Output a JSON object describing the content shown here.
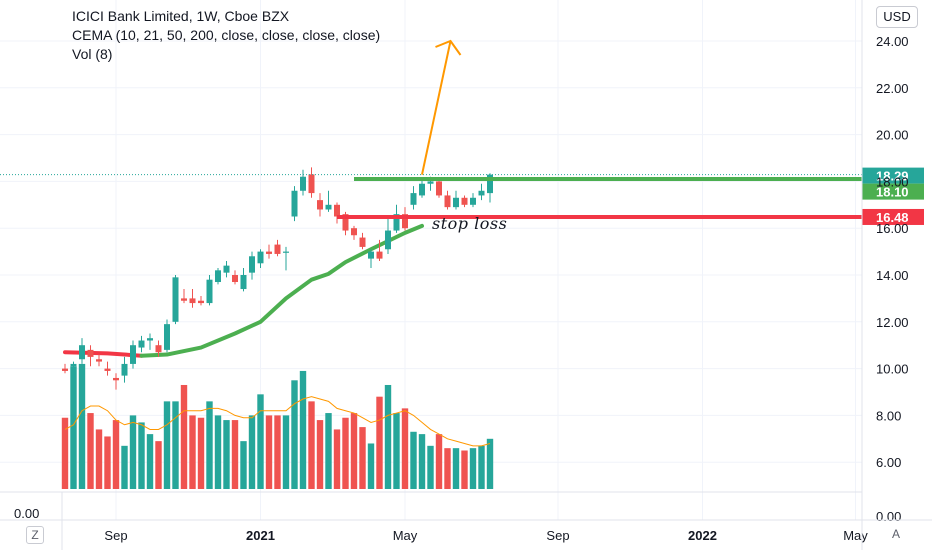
{
  "header": {
    "title": "ICICI Bank Limited, 1W, Cboe BZX",
    "indicator": "CEMA (10, 21, 50, 200, close, close, close, close)",
    "volume": "Vol (8)"
  },
  "currency_button": "USD",
  "left_scale_zero": "0.00",
  "corner_left": "Z",
  "corner_right": "A",
  "colors": {
    "up": "#26a69a",
    "down": "#ef5350",
    "ema": "#4caf50",
    "stop": "#f23645",
    "arrow": "#ff9800",
    "target": "#4caf50",
    "vol_ma": "#ff9800",
    "last_price": "#26a69a",
    "grid": "#f0f3fa"
  },
  "annotation": {
    "stop_label": "stop loss"
  },
  "chart_data": {
    "type": "candlestick",
    "title": "ICICI Bank Limited, 1W, Cboe BZX",
    "y_price_range": [
      5.0,
      25.2
    ],
    "y_ticks": [
      "24.00",
      "22.00",
      "20.00",
      "18.00",
      "16.00",
      "14.00",
      "12.00",
      "10.00",
      "8.00",
      "6.00",
      "0.00"
    ],
    "x_ticks": [
      "Sep",
      "2021",
      "May",
      "Sep",
      "2022",
      "May"
    ],
    "x_tick_weeks": [
      6,
      23,
      40,
      58,
      75,
      93
    ],
    "price_labels": [
      {
        "text": "18.29",
        "value": 18.29,
        "color": "#26a69a"
      },
      {
        "text": "18.10",
        "value": 18.1,
        "color": "#4caf50"
      },
      {
        "text": "16.48",
        "value": 16.48,
        "color": "#f23645"
      }
    ],
    "target_line": {
      "value": 18.1,
      "start_week": 34
    },
    "stop_line": {
      "value": 16.48,
      "start_week": 32
    },
    "arrow": {
      "from": {
        "week": 42,
        "value": 18.29
      },
      "to": {
        "week": 45,
        "value": 24.0
      }
    },
    "ema_line": [
      {
        "week": 0,
        "value": 10.7
      },
      {
        "week": 5,
        "value": 10.65
      },
      {
        "week": 9,
        "value": 10.55
      },
      {
        "week": 12,
        "value": 10.6
      },
      {
        "week": 16,
        "value": 10.9
      },
      {
        "week": 20,
        "value": 11.5
      },
      {
        "week": 23,
        "value": 12.0
      },
      {
        "week": 26,
        "value": 13.0
      },
      {
        "week": 29,
        "value": 13.8
      },
      {
        "week": 31,
        "value": 14.05
      },
      {
        "week": 33,
        "value": 14.55
      },
      {
        "week": 36,
        "value": 15.1
      },
      {
        "week": 40,
        "value": 15.8
      },
      {
        "week": 42,
        "value": 16.1
      }
    ],
    "candles": [
      {
        "o": 10.0,
        "h": 10.2,
        "l": 9.8,
        "c": 9.9
      },
      {
        "o": 10.1,
        "h": 10.3,
        "l": 9.6,
        "c": 10.2
      },
      {
        "o": 10.4,
        "h": 11.3,
        "l": 10.2,
        "c": 11.0
      },
      {
        "o": 10.8,
        "h": 11.0,
        "l": 10.1,
        "c": 10.5
      },
      {
        "o": 10.4,
        "h": 10.6,
        "l": 10.1,
        "c": 10.3
      },
      {
        "o": 10.0,
        "h": 10.3,
        "l": 9.7,
        "c": 9.9
      },
      {
        "o": 9.6,
        "h": 9.8,
        "l": 9.1,
        "c": 9.5
      },
      {
        "o": 9.7,
        "h": 10.5,
        "l": 9.4,
        "c": 10.2
      },
      {
        "o": 10.2,
        "h": 11.2,
        "l": 10.0,
        "c": 11.0
      },
      {
        "o": 10.9,
        "h": 11.4,
        "l": 10.7,
        "c": 11.2
      },
      {
        "o": 11.2,
        "h": 11.5,
        "l": 10.8,
        "c": 11.3
      },
      {
        "o": 11.0,
        "h": 11.2,
        "l": 10.5,
        "c": 10.7
      },
      {
        "o": 10.8,
        "h": 12.1,
        "l": 10.7,
        "c": 11.9
      },
      {
        "o": 12.0,
        "h": 14.0,
        "l": 11.9,
        "c": 13.9
      },
      {
        "o": 13.0,
        "h": 13.4,
        "l": 12.8,
        "c": 12.9
      },
      {
        "o": 13.0,
        "h": 13.4,
        "l": 12.6,
        "c": 12.8
      },
      {
        "o": 12.9,
        "h": 13.1,
        "l": 12.7,
        "c": 12.8
      },
      {
        "o": 12.8,
        "h": 14.0,
        "l": 12.7,
        "c": 13.8
      },
      {
        "o": 13.7,
        "h": 14.3,
        "l": 13.6,
        "c": 14.2
      },
      {
        "o": 14.1,
        "h": 14.6,
        "l": 13.9,
        "c": 14.4
      },
      {
        "o": 14.0,
        "h": 14.2,
        "l": 13.6,
        "c": 13.7
      },
      {
        "o": 13.4,
        "h": 14.3,
        "l": 13.3,
        "c": 14.0
      },
      {
        "o": 14.1,
        "h": 15.0,
        "l": 13.8,
        "c": 14.8
      },
      {
        "o": 14.5,
        "h": 15.1,
        "l": 14.3,
        "c": 15.0
      },
      {
        "o": 15.0,
        "h": 15.3,
        "l": 14.7,
        "c": 14.9
      },
      {
        "o": 15.3,
        "h": 15.5,
        "l": 14.8,
        "c": 14.9
      },
      {
        "o": 15.0,
        "h": 15.2,
        "l": 14.2,
        "c": 15.0
      },
      {
        "o": 16.5,
        "h": 17.8,
        "l": 16.3,
        "c": 17.6
      },
      {
        "o": 17.6,
        "h": 18.5,
        "l": 17.4,
        "c": 18.2
      },
      {
        "o": 18.3,
        "h": 18.6,
        "l": 17.3,
        "c": 17.5
      },
      {
        "o": 17.2,
        "h": 17.5,
        "l": 16.5,
        "c": 16.8
      },
      {
        "o": 16.8,
        "h": 17.6,
        "l": 16.7,
        "c": 17.0
      },
      {
        "o": 17.0,
        "h": 17.1,
        "l": 16.2,
        "c": 16.5
      },
      {
        "o": 16.6,
        "h": 16.7,
        "l": 15.7,
        "c": 15.9
      },
      {
        "o": 16.0,
        "h": 16.1,
        "l": 15.5,
        "c": 15.7
      },
      {
        "o": 15.6,
        "h": 15.8,
        "l": 15.1,
        "c": 15.2
      },
      {
        "o": 14.7,
        "h": 15.1,
        "l": 14.3,
        "c": 15.0
      },
      {
        "o": 15.0,
        "h": 15.5,
        "l": 14.6,
        "c": 14.7
      },
      {
        "o": 15.1,
        "h": 16.4,
        "l": 14.9,
        "c": 15.9
      },
      {
        "o": 15.9,
        "h": 17.0,
        "l": 15.8,
        "c": 16.6
      },
      {
        "o": 16.6,
        "h": 16.9,
        "l": 15.9,
        "c": 16.0
      },
      {
        "o": 17.0,
        "h": 17.8,
        "l": 16.8,
        "c": 17.5
      },
      {
        "o": 17.4,
        "h": 18.1,
        "l": 17.3,
        "c": 17.9
      },
      {
        "o": 17.9,
        "h": 18.2,
        "l": 17.6,
        "c": 18.0
      },
      {
        "o": 18.0,
        "h": 18.1,
        "l": 17.3,
        "c": 17.4
      },
      {
        "o": 17.4,
        "h": 17.6,
        "l": 16.8,
        "c": 16.9
      },
      {
        "o": 16.9,
        "h": 17.6,
        "l": 16.8,
        "c": 17.3
      },
      {
        "o": 17.3,
        "h": 17.4,
        "l": 16.9,
        "c": 17.0
      },
      {
        "o": 17.0,
        "h": 17.5,
        "l": 16.9,
        "c": 17.3
      },
      {
        "o": 17.4,
        "h": 17.9,
        "l": 17.2,
        "c": 17.6
      },
      {
        "o": 17.5,
        "h": 18.35,
        "l": 17.1,
        "c": 18.29
      }
    ],
    "volume": [
      7.9,
      10.1,
      10.2,
      8.1,
      7.4,
      7.1,
      7.8,
      6.7,
      8.0,
      7.7,
      7.2,
      6.9,
      8.6,
      8.6,
      9.3,
      8.0,
      7.9,
      8.6,
      8.0,
      7.8,
      7.8,
      6.9,
      8.0,
      8.9,
      8.0,
      8.0,
      8.0,
      9.5,
      9.9,
      8.6,
      7.8,
      8.1,
      7.4,
      7.9,
      8.1,
      7.5,
      6.8,
      8.8,
      9.3,
      8.1,
      8.3,
      7.3,
      7.2,
      6.7,
      7.2,
      6.6,
      6.6,
      6.5,
      6.6,
      6.7,
      7.0
    ],
    "volume_ma": [
      7.4,
      7.6,
      8.2,
      8.4,
      8.4,
      8.2,
      7.8,
      7.6,
      7.7,
      7.6,
      7.4,
      7.4,
      7.6,
      7.9,
      8.2,
      8.2,
      8.2,
      8.3,
      8.3,
      8.2,
      8.0,
      7.9,
      7.9,
      8.2,
      8.2,
      8.2,
      8.2,
      8.5,
      8.7,
      8.8,
      8.7,
      8.6,
      8.3,
      8.2,
      8.1,
      7.9,
      7.7,
      7.8,
      8.0,
      8.1,
      8.2,
      8.0,
      7.7,
      7.4,
      7.2,
      7.0,
      6.9,
      6.8,
      6.7,
      6.7,
      6.8
    ]
  }
}
